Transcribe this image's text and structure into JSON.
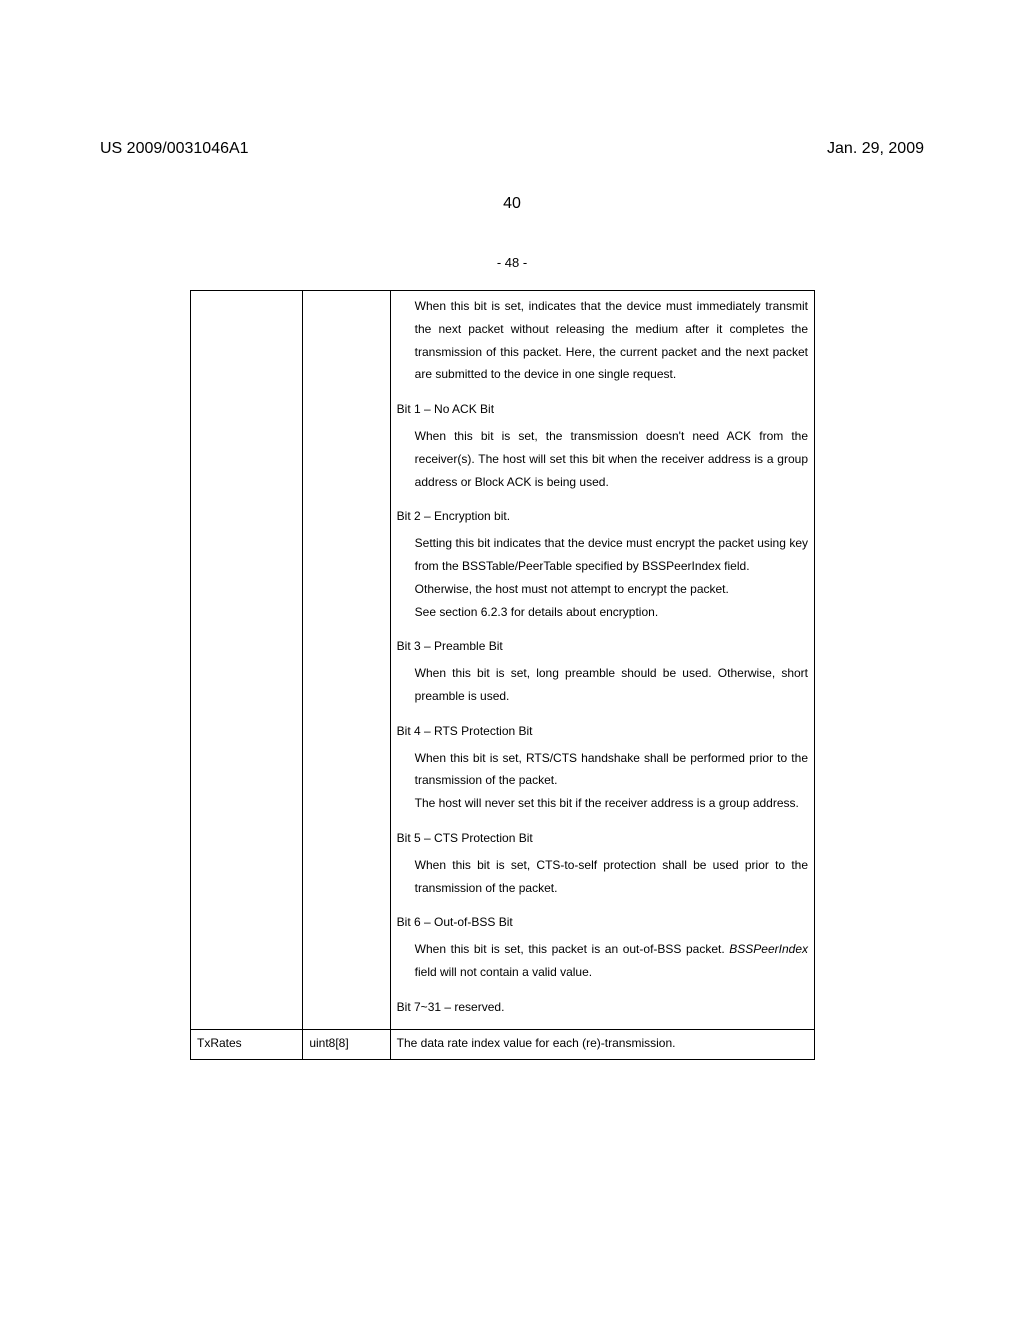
{
  "header": {
    "left": "US 2009/0031046A1",
    "right": "Jan. 29, 2009"
  },
  "page_number_outer": "40",
  "page_number_inner": "- 48 -",
  "bits": {
    "intro_body": "When this bit is set, indicates that the device must immediately transmit the next packet without releasing the medium after it completes the transmission of this packet. Here, the current packet and the next packet are submitted to the device in one single request.",
    "b1_title": "Bit 1 – No ACK Bit",
    "b1_body": "When this bit is set, the transmission doesn't need ACK from the receiver(s). The host will set this bit when the receiver address is a group address or Block ACK is being used.",
    "b2_title": "Bit 2 – Encryption bit.",
    "b2_body1": "Setting this bit indicates that the device must encrypt the packet using key from the BSSTable/PeerTable specified by BSSPeerIndex field.",
    "b2_body2": "Otherwise, the host must not attempt to encrypt the packet.",
    "b2_body3": "See section 6.2.3 for details about encryption.",
    "b3_title": "Bit 3 – Preamble Bit",
    "b3_body": "When this bit is set, long preamble should be used. Otherwise, short preamble is used.",
    "b4_title": "Bit 4 – RTS Protection Bit",
    "b4_body1": "When this bit is set, RTS/CTS handshake shall be performed prior to the transmission of the packet.",
    "b4_body2": "The host will never set this bit if the receiver address is a group address.",
    "b5_title": "Bit 5 – CTS Protection Bit",
    "b5_body": "When this bit is set, CTS-to-self protection shall be used prior to the transmission of the packet.",
    "b6_title": "Bit 6 – Out-of-BSS Bit",
    "b6_body_pre": "When this bit is set, this packet is an out-of-BSS packet. ",
    "b6_body_field": "BSSPeerIndex",
    "b6_body_post": " field will not contain a valid value.",
    "b7_title": "Bit 7~31 – reserved."
  },
  "row2": {
    "name": "TxRates",
    "type": "uint8[8]",
    "desc": "The data rate index value for each (re)-transmission."
  }
}
